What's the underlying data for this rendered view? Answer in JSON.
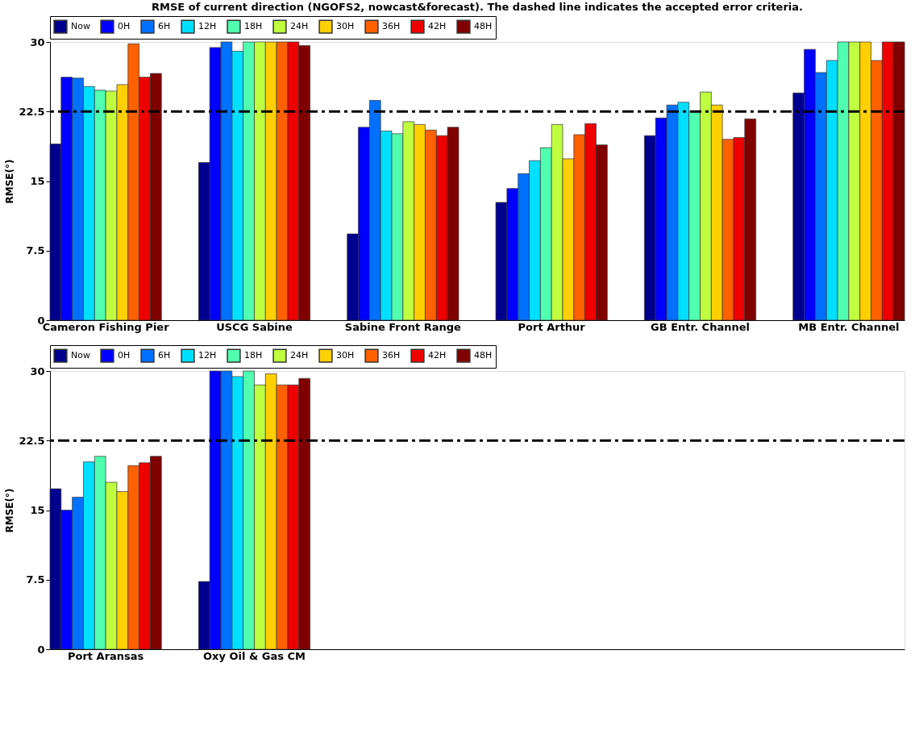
{
  "chart_data": [
    {
      "type": "bar",
      "title": "RMSE of current direction (NGOFS2, nowcast&forecast). The dashed line indicates the accepted error criteria.",
      "ylabel": "RMSE(°)",
      "categories": [
        "Cameron Fishing Pier",
        "USCG Sabine",
        "Sabine Front Range",
        "Port Arthur",
        "GB Entr. Channel",
        "MB Entr. Channel"
      ],
      "ylim": [
        0,
        30
      ],
      "yticks": [
        0,
        7.5,
        15,
        22.5,
        30
      ],
      "legend": "top",
      "grid": false,
      "ref_lines": [
        {
          "axis": "y",
          "value": 22.5,
          "color": "#000000",
          "line_style": "dashdot"
        }
      ],
      "series": [
        {
          "name": "Now",
          "color": "#00008f",
          "values": [
            19.0,
            17.0,
            9.3,
            12.7,
            19.9,
            24.5
          ]
        },
        {
          "name": "0H",
          "color": "#0000ff",
          "values": [
            26.2,
            29.4,
            20.8,
            14.2,
            21.8,
            29.2
          ]
        },
        {
          "name": "6H",
          "color": "#0070ff",
          "values": [
            26.1,
            30,
            23.7,
            15.8,
            23.2,
            26.7
          ]
        },
        {
          "name": "12H",
          "color": "#00dfff",
          "values": [
            25.2,
            29.0,
            20.4,
            17.2,
            23.5,
            28
          ]
        },
        {
          "name": "18H",
          "color": "#50ffaf",
          "values": [
            24.8,
            30,
            20.1,
            18.6,
            22.5,
            30
          ]
        },
        {
          "name": "24H",
          "color": "#bfff40",
          "values": [
            24.7,
            30,
            21.4,
            21.1,
            24.6,
            30
          ]
        },
        {
          "name": "30H",
          "color": "#ffcf00",
          "values": [
            25.4,
            30,
            21.1,
            17.4,
            23.2,
            30
          ]
        },
        {
          "name": "36H",
          "color": "#ff6000",
          "values": [
            29.8,
            30,
            20.5,
            20.0,
            19.5,
            28
          ]
        },
        {
          "name": "42H",
          "color": "#ef0000",
          "values": [
            26.2,
            30,
            19.9,
            21.2,
            19.7,
            30
          ]
        },
        {
          "name": "48H",
          "color": "#800000",
          "values": [
            26.6,
            29.6,
            20.8,
            18.9,
            21.7,
            30
          ]
        }
      ]
    },
    {
      "type": "bar",
      "ylabel": "RMSE(°)",
      "categories": [
        "Port Aransas",
        "Oxy Oil & Gas CM",
        null,
        null,
        null,
        null
      ],
      "ylim": [
        0,
        30
      ],
      "yticks": [
        0,
        7.5,
        15,
        22.5,
        30
      ],
      "legend": "top",
      "grid": false,
      "ref_lines": [
        {
          "axis": "y",
          "value": 22.5,
          "color": "#000000",
          "line_style": "dashdot"
        }
      ],
      "series": [
        {
          "name": "Now",
          "color": "#00008f",
          "values": [
            17.3,
            7.3,
            null,
            null,
            null,
            null
          ]
        },
        {
          "name": "0H",
          "color": "#0000ff",
          "values": [
            15.0,
            30,
            null,
            null,
            null,
            null
          ]
        },
        {
          "name": "6H",
          "color": "#0070ff",
          "values": [
            16.4,
            30,
            null,
            null,
            null,
            null
          ]
        },
        {
          "name": "12H",
          "color": "#00dfff",
          "values": [
            20.2,
            29.4,
            null,
            null,
            null,
            null
          ]
        },
        {
          "name": "18H",
          "color": "#50ffaf",
          "values": [
            20.8,
            30,
            null,
            null,
            null,
            null
          ]
        },
        {
          "name": "24H",
          "color": "#bfff40",
          "values": [
            18.0,
            28.5,
            null,
            null,
            null,
            null
          ]
        },
        {
          "name": "30H",
          "color": "#ffcf00",
          "values": [
            17.0,
            29.7,
            null,
            null,
            null,
            null
          ]
        },
        {
          "name": "36H",
          "color": "#ff6000",
          "values": [
            19.8,
            28.5,
            null,
            null,
            null,
            null
          ]
        },
        {
          "name": "42H",
          "color": "#ef0000",
          "values": [
            20.1,
            28.5,
            null,
            null,
            null,
            null
          ]
        },
        {
          "name": "48H",
          "color": "#800000",
          "values": [
            20.8,
            29.2,
            null,
            null,
            null,
            null
          ]
        }
      ]
    }
  ]
}
